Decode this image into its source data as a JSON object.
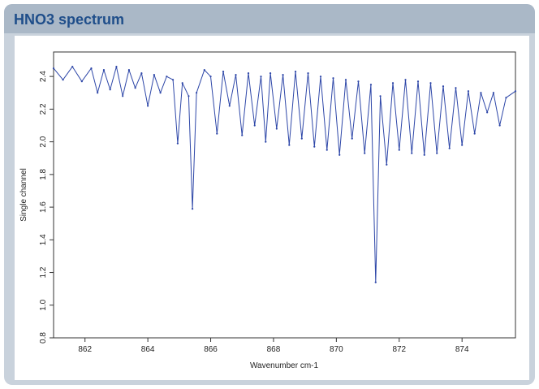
{
  "panel": {
    "title": "HNO3 spectrum"
  },
  "colors": {
    "line": "#2e47a8",
    "panel_bg": "#c9d2dc",
    "header_bg": "#aab8c7",
    "title": "#1f4e8a"
  },
  "chart_data": {
    "type": "line",
    "title": "",
    "xlabel": "Wavenumber cm-1",
    "ylabel": "Single channel",
    "xlim": [
      861.0,
      875.7
    ],
    "ylim": [
      0.8,
      2.55
    ],
    "xticks": [
      862,
      864,
      866,
      868,
      870,
      872,
      874
    ],
    "yticks": [
      0.8,
      1.0,
      1.2,
      1.4,
      1.6,
      1.8,
      2.0,
      2.2,
      2.4
    ],
    "grid": false,
    "legend": "none",
    "markers": "small dots",
    "series": [
      {
        "x": [
          861.0,
          861.3,
          861.6,
          861.9,
          862.2,
          862.4,
          862.6,
          862.8,
          863.0,
          863.2,
          863.4,
          863.6,
          863.8,
          864.0,
          864.2,
          864.4,
          864.6,
          864.8,
          864.95,
          865.1,
          865.3,
          865.42,
          865.55,
          865.8,
          866.0,
          866.2,
          866.4,
          866.6,
          866.8,
          867.0,
          867.2,
          867.4,
          867.6,
          867.75,
          867.9,
          868.1,
          868.3,
          868.5,
          868.7,
          868.9,
          869.1,
          869.3,
          869.5,
          869.7,
          869.9,
          870.1,
          870.3,
          870.5,
          870.7,
          870.9,
          871.1,
          871.25,
          871.4,
          871.6,
          871.8,
          872.0,
          872.2,
          872.4,
          872.6,
          872.8,
          873.0,
          873.2,
          873.4,
          873.6,
          873.8,
          874.0,
          874.2,
          874.4,
          874.6,
          874.8,
          875.0,
          875.2,
          875.4,
          875.7
        ],
        "y": [
          2.45,
          2.38,
          2.46,
          2.37,
          2.45,
          2.3,
          2.44,
          2.32,
          2.46,
          2.28,
          2.44,
          2.33,
          2.42,
          2.22,
          2.41,
          2.3,
          2.4,
          2.38,
          1.99,
          2.36,
          2.28,
          1.59,
          2.3,
          2.44,
          2.4,
          2.05,
          2.43,
          2.22,
          2.41,
          2.04,
          2.42,
          2.1,
          2.4,
          2.0,
          2.42,
          2.08,
          2.41,
          1.98,
          2.43,
          2.02,
          2.42,
          1.97,
          2.4,
          1.95,
          2.39,
          1.92,
          2.38,
          2.02,
          2.37,
          1.93,
          2.35,
          1.14,
          2.28,
          1.86,
          2.36,
          1.95,
          2.38,
          1.93,
          2.37,
          1.92,
          2.36,
          1.93,
          2.34,
          1.96,
          2.33,
          1.98,
          2.31,
          2.05,
          2.3,
          2.18,
          2.3,
          2.1,
          2.27,
          2.31
        ]
      }
    ]
  }
}
